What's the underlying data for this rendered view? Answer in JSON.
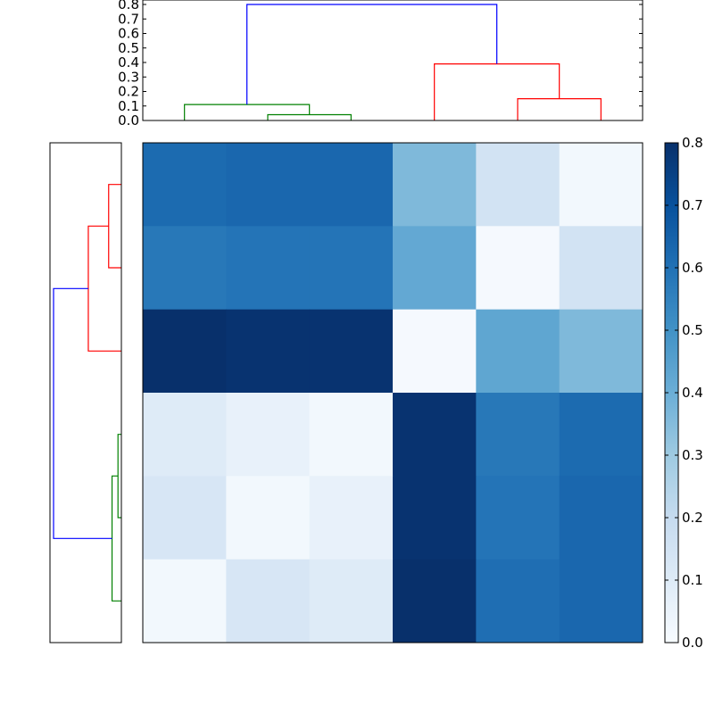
{
  "chart_data": {
    "type": "heatmap",
    "title": "",
    "colormap": "Blues",
    "clim": [
      0,
      0.8
    ],
    "colorbar": {
      "ticks": [
        0.0,
        0.1,
        0.2,
        0.3,
        0.4,
        0.5,
        0.6,
        0.7,
        0.8
      ],
      "tick_labels": [
        "0.0",
        "0.1",
        "0.2",
        "0.3",
        "0.4",
        "0.5",
        "0.6",
        "0.7",
        "0.8"
      ]
    },
    "matrix": [
      [
        0.62,
        0.63,
        0.63,
        0.36,
        0.15,
        0.02
      ],
      [
        0.58,
        0.59,
        0.59,
        0.42,
        0.01,
        0.15
      ],
      [
        0.8,
        0.79,
        0.79,
        0.01,
        0.43,
        0.36
      ],
      [
        0.1,
        0.06,
        0.02,
        0.79,
        0.58,
        0.62
      ],
      [
        0.13,
        0.02,
        0.06,
        0.79,
        0.59,
        0.63
      ],
      [
        0.02,
        0.13,
        0.1,
        0.8,
        0.61,
        0.63
      ]
    ],
    "top_dendrogram": {
      "ylim": [
        0,
        0.8
      ],
      "ticks": [
        0.0,
        0.1,
        0.2,
        0.3,
        0.4,
        0.5,
        0.6,
        0.7,
        0.8
      ],
      "tick_labels": [
        "0.0",
        "0.1",
        "0.2",
        "0.3",
        "0.4",
        "0.5",
        "0.6",
        "0.7",
        "0.8"
      ],
      "merges": [
        {
          "x1": 1.5,
          "y1": 0.0,
          "x2": 2.5,
          "y2": 0.0,
          "height": 0.04,
          "color": "#008000"
        },
        {
          "x1": 0.5,
          "y1": 0.0,
          "x2": 2.0,
          "y2": 0.04,
          "height": 0.11,
          "color": "#008000"
        },
        {
          "x1": 4.5,
          "y1": 0.0,
          "x2": 5.5,
          "y2": 0.0,
          "height": 0.15,
          "color": "#ff0000"
        },
        {
          "x1": 3.5,
          "y1": 0.0,
          "x2": 5.0,
          "y2": 0.15,
          "height": 0.39,
          "color": "#ff0000"
        },
        {
          "x1": 1.25,
          "y1": 0.11,
          "x2": 4.25,
          "y2": 0.39,
          "height": 0.8,
          "color": "#0000ff"
        }
      ]
    },
    "left_dendrogram": {
      "xlim": [
        0,
        0.8
      ],
      "merges": [
        {
          "y1": 0.5,
          "x1": 0.0,
          "y2": 1.5,
          "x2": 0.0,
          "height": 0.15,
          "color": "#ff0000"
        },
        {
          "y1": 1.0,
          "x1": 0.15,
          "y2": 2.5,
          "x2": 0.0,
          "height": 0.39,
          "color": "#ff0000"
        },
        {
          "y1": 3.5,
          "x1": 0.0,
          "y2": 4.5,
          "x2": 0.0,
          "height": 0.04,
          "color": "#008000"
        },
        {
          "y1": 4.0,
          "x1": 0.04,
          "y2": 5.5,
          "x2": 0.0,
          "height": 0.11,
          "color": "#008000"
        },
        {
          "y1": 1.75,
          "x1": 0.39,
          "y2": 4.75,
          "x2": 0.11,
          "height": 0.8,
          "color": "#0000ff"
        }
      ]
    }
  }
}
